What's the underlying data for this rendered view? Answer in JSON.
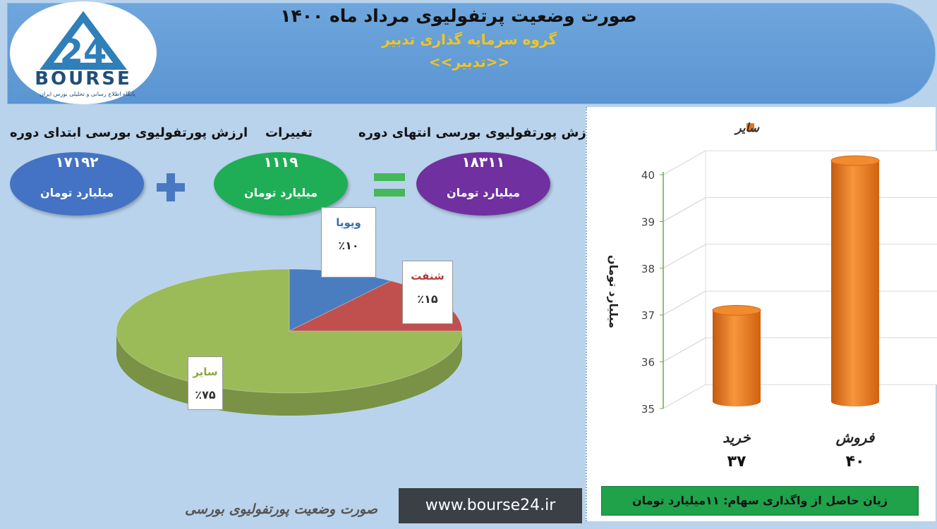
{
  "header": {
    "title": "صورت وضعیت پرتفولیوی مرداد ماه ۱۴۰۰",
    "subtitle": "گروه سرمایه گذاری تدبیر",
    "subtitle2": "<<تدبیر>>"
  },
  "logo": {
    "brand": "BOURSE",
    "tagline": "پایگاه اطلاع رسانی و تحلیلی بورس ایران"
  },
  "kpis": {
    "start": {
      "label": "ارزش پورتفولیوی بورسی ابتدای دوره",
      "value": "۱۷۱۹۲",
      "unit": "میلیارد تومان",
      "color": "#4472c4"
    },
    "change": {
      "label": "تغییرات",
      "value": "۱۱۱۹",
      "unit": "میلیارد تومان",
      "color": "#1fae55"
    },
    "end": {
      "label": "ارزش پورتفولیوی بورسی انتهای دوره",
      "value": "۱۸۳۱۱",
      "unit": "میلیارد تومان",
      "color": "#7030a0"
    }
  },
  "pie": {
    "slices": [
      {
        "name": "وپویا",
        "pct_label": "٪۱۰",
        "value": 10,
        "color": "#4a7dbf",
        "label_color": "#3a6eae"
      },
      {
        "name": "شنفت",
        "pct_label": "٪۱۵",
        "value": 15,
        "color": "#c0504d",
        "label_color": "#b03a38"
      },
      {
        "name": "سایر",
        "pct_label": "٪۷۵",
        "value": 75,
        "color": "#9bbb59",
        "label_color": "#8aa83f"
      }
    ]
  },
  "chart_data": {
    "type": "bar",
    "categories": [
      "خرید",
      "فروش"
    ],
    "value_labels": [
      "۳۷",
      "۴۰"
    ],
    "series": [
      {
        "name": "سایر",
        "values": [
          37.1,
          40.3
        ]
      }
    ],
    "ylabel": "میلیارد تومان",
    "ylim": [
      35,
      40
    ],
    "yticks": [
      "35",
      "36",
      "37",
      "38",
      "39",
      "40"
    ],
    "bar_color": "#e8731d",
    "legend": "top"
  },
  "loss_note": "زیان حاصل از واگذاری سهام: ۱۱میلیارد تومان",
  "footer": {
    "text": "صورت وضعیت پورتفولیوی بورسی",
    "url": "www.bourse24.ir"
  }
}
